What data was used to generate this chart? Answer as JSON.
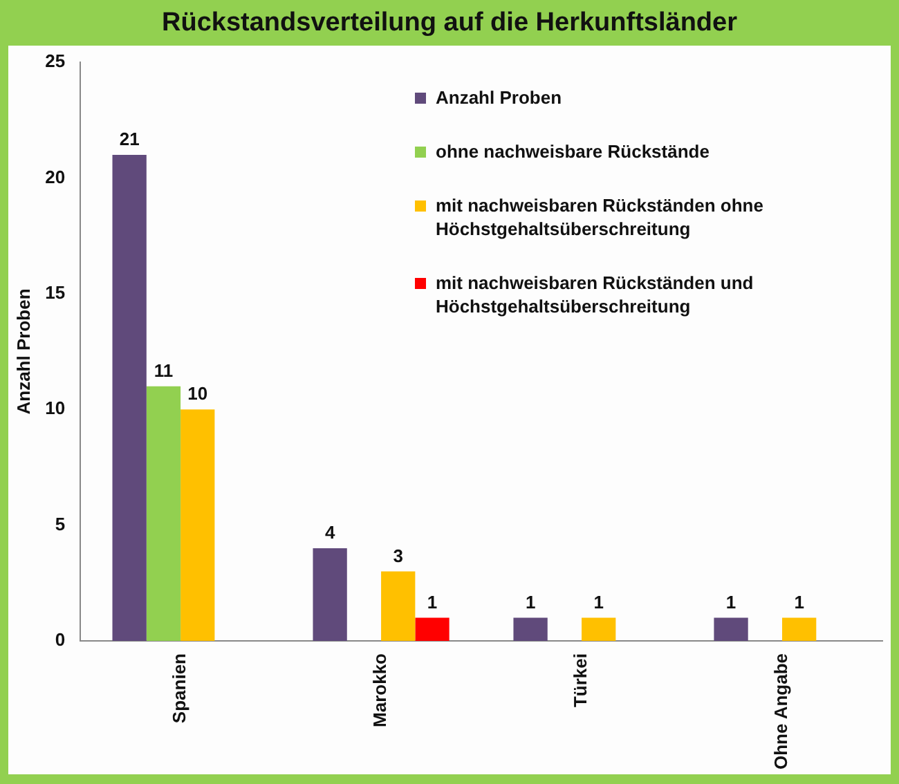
{
  "chart_data": {
    "type": "bar",
    "title": "Rückstandsverteilung auf die Herkunftsländer",
    "ylabel": "Anzahl Proben",
    "categories": [
      "Spanien",
      "Marokko",
      "Türkei",
      "Ohne Angabe"
    ],
    "series": [
      {
        "name": "Anzahl Proben",
        "color": "#604a7b",
        "values": [
          21,
          4,
          1,
          1
        ]
      },
      {
        "name": "ohne nachweisbare Rückstände",
        "color": "#92d050",
        "values": [
          11,
          null,
          null,
          null
        ]
      },
      {
        "name": "mit nachweisbaren Rückständen ohne Höchstgehaltsüberschreitung",
        "color": "#ffc000",
        "values": [
          10,
          3,
          1,
          1
        ]
      },
      {
        "name": "mit nachweisbaren Rückständen und Höchstgehaltsüberschreitung",
        "color": "#ff0000",
        "values": [
          null,
          1,
          null,
          null
        ]
      }
    ],
    "ylim": [
      0,
      25
    ],
    "yticks": [
      0,
      5,
      10,
      15,
      20,
      25
    ],
    "grid": false,
    "legend": "top right",
    "data_labels": true
  }
}
